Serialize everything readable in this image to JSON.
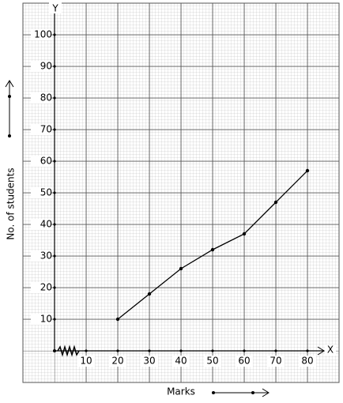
{
  "chart_data": {
    "type": "line",
    "x_axis_name": "X",
    "y_axis_name": "Y",
    "xlabel": "Marks",
    "ylabel": "No. of students",
    "x": [
      20,
      30,
      40,
      50,
      60,
      70,
      80
    ],
    "values": [
      10,
      18,
      26,
      32,
      37,
      47,
      57
    ],
    "color": "#000000",
    "xlim": [
      -10,
      90
    ],
    "ylim": [
      -10,
      110
    ],
    "xticks": [
      10,
      20,
      30,
      40,
      50,
      60,
      70,
      80
    ],
    "yticks": [
      10,
      20,
      30,
      40,
      50,
      60,
      70,
      80,
      90,
      100
    ],
    "grid": true
  }
}
